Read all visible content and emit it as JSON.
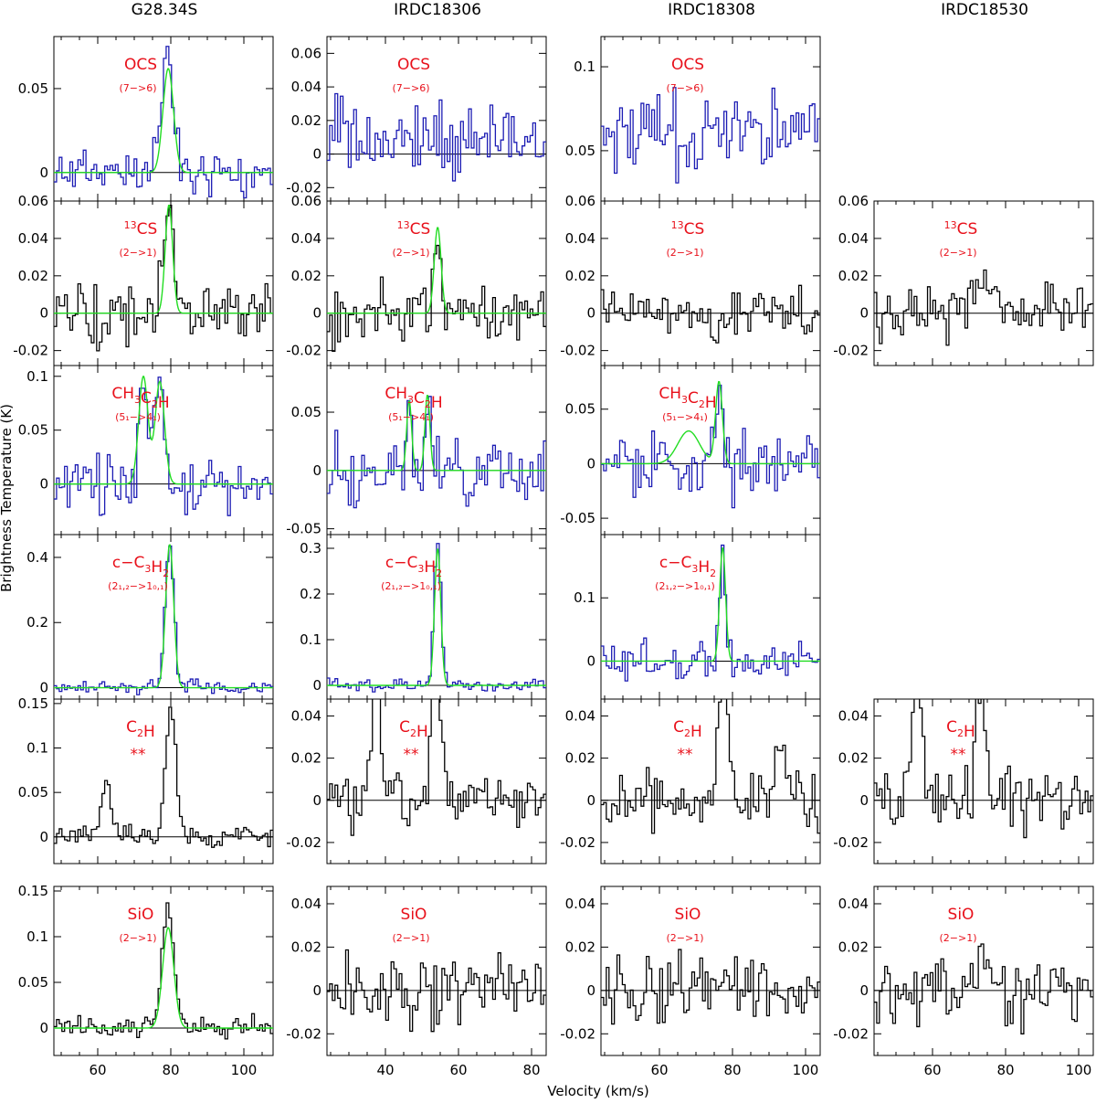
{
  "figure": {
    "x_label": "Velocity (km/s)",
    "y_label": "Brightness Temperature (K)"
  },
  "columns": [
    "G28.34S",
    "IRDC18306",
    "IRDC18308",
    "IRDC18530"
  ],
  "rows": [
    {
      "molecule": "OCS",
      "transition": "(7−>6)"
    },
    {
      "molecule": "¹³CS",
      "transition": "(2−>1)"
    },
    {
      "molecule": "CH₃C₂H",
      "transition": "(5₁−>4₁)"
    },
    {
      "molecule": "c−C₃H₂",
      "transition": "(2₁,₂−>1₀,₁)"
    },
    {
      "molecule": "C₂H",
      "transition": "**"
    },
    {
      "molecule": "SiO",
      "transition": "(2−>1)"
    }
  ],
  "colors": {
    "raw_spectrum": "#1c1cb4",
    "gray_spectrum": "#000000",
    "fit": "#22dd22",
    "label": "#e8111b"
  },
  "chart_data": {
    "type": "line",
    "description_units": {
      "x": "km/s",
      "y": "K"
    },
    "panels": [
      {
        "source": "G28.34S",
        "molecule": "OCS",
        "transition": "(7->6)",
        "style": "blue",
        "x_range": [
          48,
          108
        ],
        "y_range": [
          -0.017,
          0.081
        ],
        "y_ticks": [
          0,
          0.05
        ],
        "x_ticks": [
          60,
          80,
          100
        ],
        "show_x_ticks": false,
        "fit": {
          "components": [
            {
              "amp": 0.062,
              "center": 79.3,
              "fwhm": 3.4
            }
          ]
        },
        "noise_rms": 0.01,
        "features": [
          {
            "center": 79,
            "amp": 0.075,
            "width": 1.6
          }
        ],
        "seed": 11
      },
      {
        "source": "IRDC18306",
        "molecule": "OCS",
        "transition": "(7->6)",
        "style": "blue",
        "x_range": [
          24,
          84
        ],
        "y_range": [
          -0.028,
          0.07
        ],
        "y_ticks": [
          -0.02,
          0,
          0.02,
          0.04,
          0.06
        ],
        "x_ticks": [
          40,
          60,
          80
        ],
        "show_x_ticks": false,
        "fit": null,
        "noise_rms": 0.017,
        "baseline": 0.01,
        "features": [],
        "seed": 12
      },
      {
        "source": "IRDC18308",
        "molecule": "OCS",
        "transition": "(7->6)",
        "style": "blue",
        "x_range": [
          44,
          104
        ],
        "y_range": [
          0.02,
          0.118
        ],
        "y_ticks": [
          0.05,
          0.1
        ],
        "x_ticks": [
          60,
          80,
          100
        ],
        "show_x_ticks": false,
        "fit": null,
        "noise_rms": 0.018,
        "baseline": 0.062,
        "features": [],
        "seed": 13
      },
      null,
      {
        "source": "G28.34S",
        "molecule": "13CS",
        "transition": "(2->1)",
        "style": "black",
        "x_range": [
          48,
          108
        ],
        "y_range": [
          -0.028,
          0.06
        ],
        "y_ticks": [
          -0.02,
          0,
          0.02,
          0.04,
          0.06
        ],
        "x_ticks": [
          60,
          80,
          100
        ],
        "show_x_ticks": false,
        "fit": {
          "components": [
            {
              "amp": 0.058,
              "center": 79.5,
              "fwhm": 2.4
            }
          ]
        },
        "noise_rms": 0.011,
        "features": [
          {
            "center": 79.4,
            "amp": 0.058,
            "width": 1.3
          }
        ],
        "seed": 21
      },
      {
        "source": "IRDC18306",
        "molecule": "13CS",
        "transition": "(2->1)",
        "style": "black",
        "x_range": [
          24,
          84
        ],
        "y_range": [
          -0.028,
          0.06
        ],
        "y_ticks": [
          -0.02,
          0,
          0.02,
          0.04,
          0.06
        ],
        "x_ticks": [
          40,
          60,
          80
        ],
        "show_x_ticks": false,
        "fit": {
          "components": [
            {
              "amp": 0.046,
              "center": 54.3,
              "fwhm": 2.2
            }
          ]
        },
        "noise_rms": 0.011,
        "features": [
          {
            "center": 54.3,
            "amp": 0.045,
            "width": 1.0
          }
        ],
        "seed": 22
      },
      {
        "source": "IRDC18308",
        "molecule": "13CS",
        "transition": "(2->1)",
        "style": "black",
        "x_range": [
          44,
          104
        ],
        "y_range": [
          -0.028,
          0.06
        ],
        "y_ticks": [
          -0.02,
          0,
          0.02,
          0.04,
          0.06
        ],
        "x_ticks": [
          60,
          80,
          100
        ],
        "show_x_ticks": false,
        "fit": null,
        "noise_rms": 0.01,
        "features": [],
        "seed": 23
      },
      {
        "source": "IRDC18530",
        "molecule": "13CS",
        "transition": "(2->1)",
        "style": "black",
        "x_range": [
          44,
          104
        ],
        "y_range": [
          -0.028,
          0.06
        ],
        "y_ticks": [
          -0.02,
          0,
          0.02,
          0.04,
          0.06
        ],
        "x_ticks": [
          60,
          80,
          100
        ],
        "show_x_ticks": false,
        "fit": null,
        "noise_rms": 0.011,
        "features": [
          {
            "center": 73,
            "amp": 0.018,
            "width": 3
          }
        ],
        "seed": 24
      },
      {
        "source": "G28.34S",
        "molecule": "CH3C2H",
        "transition": "(5_1->4_1)",
        "style": "blue",
        "x_range": [
          48,
          108
        ],
        "y_range": [
          -0.047,
          0.11
        ],
        "y_ticks": [
          0,
          0.05,
          0.1
        ],
        "x_ticks": [
          60,
          80,
          100
        ],
        "show_x_ticks": false,
        "fit": {
          "components": [
            {
              "amp": 0.1,
              "center": 72.5,
              "fwhm": 3.0
            },
            {
              "amp": 0.095,
              "center": 77.0,
              "fwhm": 3.0
            }
          ]
        },
        "noise_rms": 0.019,
        "features": [
          {
            "center": 72.5,
            "amp": 0.1,
            "width": 1.2
          },
          {
            "center": 77,
            "amp": 0.095,
            "width": 1.2
          }
        ],
        "seed": 31
      },
      {
        "source": "IRDC18306",
        "molecule": "CH3C2H",
        "transition": "(5_1->4_1)",
        "style": "blue",
        "x_range": [
          24,
          84
        ],
        "y_range": [
          -0.055,
          0.09
        ],
        "y_ticks": [
          -0.05,
          0,
          0.05
        ],
        "x_ticks": [
          40,
          60,
          80
        ],
        "show_x_ticks": false,
        "fit": {
          "components": [
            {
              "amp": 0.06,
              "center": 46.5,
              "fwhm": 1.6
            },
            {
              "amp": 0.065,
              "center": 51.5,
              "fwhm": 1.6
            }
          ]
        },
        "noise_rms": 0.02,
        "features": [
          {
            "center": 46.5,
            "amp": 0.06,
            "width": 0.8
          },
          {
            "center": 51.5,
            "amp": 0.068,
            "width": 0.8
          }
        ],
        "seed": 32
      },
      {
        "source": "IRDC18308",
        "molecule": "CH3C2H",
        "transition": "(5_1->4_1)",
        "style": "blue",
        "x_range": [
          44,
          104
        ],
        "y_range": [
          -0.065,
          0.09
        ],
        "y_ticks": [
          -0.05,
          0,
          0.05
        ],
        "x_ticks": [
          60,
          80,
          100
        ],
        "show_x_ticks": false,
        "fit": {
          "components": [
            {
              "amp": 0.03,
              "center": 68,
              "fwhm": 7.0
            },
            {
              "amp": 0.075,
              "center": 76.3,
              "fwhm": 2.2
            }
          ]
        },
        "noise_rms": 0.022,
        "features": [
          {
            "center": 76.3,
            "amp": 0.08,
            "width": 1.0
          }
        ],
        "seed": 33
      },
      null,
      {
        "source": "G28.34S",
        "molecule": "c-C3H2",
        "transition": "(2_1,2->1_0,1)",
        "style": "blue",
        "x_range": [
          48,
          108
        ],
        "y_range": [
          -0.035,
          0.47
        ],
        "y_ticks": [
          0,
          0.2,
          0.4
        ],
        "x_ticks": [
          60,
          80,
          100
        ],
        "show_x_ticks": false,
        "fit": {
          "components": [
            {
              "amp": 0.44,
              "center": 79.7,
              "fwhm": 2.6
            }
          ]
        },
        "noise_rms": 0.016,
        "features": [
          {
            "center": 79.7,
            "amp": 0.44,
            "width": 1.2
          }
        ],
        "seed": 41
      },
      {
        "source": "IRDC18306",
        "molecule": "c-C3H2",
        "transition": "(2_1,2->1_0,1)",
        "style": "blue",
        "x_range": [
          24,
          84
        ],
        "y_range": [
          -0.03,
          0.33
        ],
        "y_ticks": [
          0,
          0.1,
          0.2,
          0.3
        ],
        "x_ticks": [
          40,
          60,
          80
        ],
        "show_x_ticks": false,
        "fit": {
          "components": [
            {
              "amp": 0.3,
              "center": 54.3,
              "fwhm": 2.0
            }
          ]
        },
        "noise_rms": 0.012,
        "features": [
          {
            "center": 54.3,
            "amp": 0.31,
            "width": 1.0
          }
        ],
        "seed": 42
      },
      {
        "source": "IRDC18308",
        "molecule": "c-C3H2",
        "transition": "(2_1,2->1_0,1)",
        "style": "blue",
        "x_range": [
          44,
          104
        ],
        "y_range": [
          -0.06,
          0.2
        ],
        "y_ticks": [
          0,
          0.1
        ],
        "x_ticks": [
          60,
          80,
          100
        ],
        "show_x_ticks": false,
        "fit": {
          "components": [
            {
              "amp": 0.18,
              "center": 77.3,
              "fwhm": 1.9
            }
          ]
        },
        "noise_rms": 0.022,
        "features": [
          {
            "center": 77.3,
            "amp": 0.18,
            "width": 0.9
          }
        ],
        "seed": 43
      },
      null,
      {
        "source": "G28.34S",
        "molecule": "C2H",
        "transition": "**",
        "style": "black",
        "x_range": [
          48,
          108
        ],
        "y_range": [
          -0.03,
          0.155
        ],
        "y_ticks": [
          0,
          0.05,
          0.1,
          0.15
        ],
        "x_ticks": [
          60,
          80,
          100
        ],
        "show_x_ticks": false,
        "fit": null,
        "noise_rms": 0.008,
        "features": [
          {
            "center": 62.5,
            "amp": 0.06,
            "width": 1.4
          },
          {
            "center": 80,
            "amp": 0.145,
            "width": 1.4
          }
        ],
        "seed": 51
      },
      {
        "source": "IRDC18306",
        "molecule": "C2H",
        "transition": "**",
        "style": "black",
        "x_range": [
          24,
          84
        ],
        "y_range": [
          -0.03,
          0.048
        ],
        "y_ticks": [
          -0.02,
          0,
          0.02,
          0.04
        ],
        "x_ticks": [
          40,
          60,
          80
        ],
        "show_x_ticks": false,
        "fit": null,
        "noise_rms": 0.01,
        "features": [
          {
            "center": 37.5,
            "amp": 0.06,
            "width": 1.2
          },
          {
            "center": 54,
            "amp": 0.06,
            "width": 1.3
          }
        ],
        "seed": 52
      },
      {
        "source": "IRDC18308",
        "molecule": "C2H",
        "transition": "**",
        "style": "black",
        "x_range": [
          44,
          104
        ],
        "y_range": [
          -0.03,
          0.048
        ],
        "y_ticks": [
          -0.02,
          0,
          0.02,
          0.04
        ],
        "x_ticks": [
          60,
          80,
          100
        ],
        "show_x_ticks": false,
        "fit": null,
        "noise_rms": 0.01,
        "features": [
          {
            "center": 77.5,
            "amp": 0.06,
            "width": 1.3
          },
          {
            "center": 93,
            "amp": 0.022,
            "width": 2
          }
        ],
        "seed": 53
      },
      {
        "source": "IRDC18530",
        "molecule": "C2H",
        "transition": "**",
        "style": "black",
        "x_range": [
          44,
          104
        ],
        "y_range": [
          -0.03,
          0.048
        ],
        "y_ticks": [
          -0.02,
          0,
          0.02,
          0.04
        ],
        "x_ticks": [
          60,
          80,
          100
        ],
        "show_x_ticks": false,
        "fit": null,
        "noise_rms": 0.011,
        "features": [
          {
            "center": 56,
            "amp": 0.06,
            "width": 1.2
          },
          {
            "center": 73,
            "amp": 0.06,
            "width": 1.2
          }
        ],
        "seed": 54
      },
      {
        "source": "G28.34S",
        "molecule": "SiO",
        "transition": "(2->1)",
        "style": "black",
        "x_range": [
          48,
          108
        ],
        "y_range": [
          -0.03,
          0.155
        ],
        "y_ticks": [
          0,
          0.05,
          0.1,
          0.15
        ],
        "x_ticks": [
          60,
          80,
          100
        ],
        "show_x_ticks": true,
        "fit": {
          "components": [
            {
              "amp": 0.11,
              "center": 79.3,
              "fwhm": 3.6
            }
          ]
        },
        "noise_rms": 0.008,
        "features": [
          {
            "center": 79.2,
            "amp": 0.135,
            "width": 1.6
          }
        ],
        "seed": 61
      },
      {
        "source": "IRDC18306",
        "molecule": "SiO",
        "transition": "(2->1)",
        "style": "black",
        "x_range": [
          24,
          84
        ],
        "y_range": [
          -0.03,
          0.048
        ],
        "y_ticks": [
          -0.02,
          0,
          0.02,
          0.04
        ],
        "x_ticks": [
          40,
          60,
          80
        ],
        "show_x_ticks": true,
        "fit": null,
        "noise_rms": 0.011,
        "features": [],
        "seed": 62
      },
      {
        "source": "IRDC18308",
        "molecule": "SiO",
        "transition": "(2->1)",
        "style": "black",
        "x_range": [
          44,
          104
        ],
        "y_range": [
          -0.03,
          0.048
        ],
        "y_ticks": [
          -0.02,
          0,
          0.02,
          0.04
        ],
        "x_ticks": [
          60,
          80,
          100
        ],
        "show_x_ticks": true,
        "fit": null,
        "noise_rms": 0.011,
        "features": [],
        "seed": 63
      },
      {
        "source": "IRDC18530",
        "molecule": "SiO",
        "transition": "(2->1)",
        "style": "black",
        "x_range": [
          44,
          104
        ],
        "y_range": [
          -0.03,
          0.048
        ],
        "y_ticks": [
          -0.02,
          0,
          0.02,
          0.04
        ],
        "x_ticks": [
          60,
          80,
          100
        ],
        "show_x_ticks": true,
        "fit": null,
        "noise_rms": 0.01,
        "features": [
          {
            "center": 72,
            "amp": 0.012,
            "width": 4
          }
        ],
        "seed": 64
      }
    ]
  }
}
